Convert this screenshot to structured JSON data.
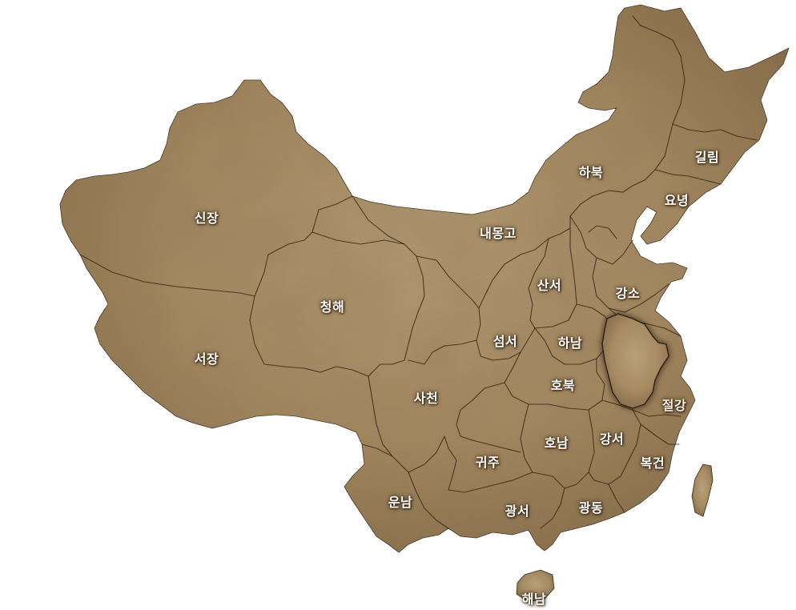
{
  "map": {
    "style": "aged-parchment",
    "colors": {
      "land_base": "#a0865f",
      "land_light": "#b79d74",
      "land_dark": "#5a4428",
      "border": "#3b2a18",
      "label_text": "#ffffff",
      "label_outline": "#3c2814",
      "background": "#ffffff"
    },
    "highlighted_province": "anhui",
    "provinces": [
      {
        "id": "xinjiang",
        "label": "신장"
      },
      {
        "id": "xizang",
        "label": "서장"
      },
      {
        "id": "qinghai",
        "label": "청해"
      },
      {
        "id": "neimenggu",
        "label": "내몽고"
      },
      {
        "id": "hebei",
        "label": "하북"
      },
      {
        "id": "jilin",
        "label": "길림"
      },
      {
        "id": "liaoning",
        "label": "요녕"
      },
      {
        "id": "shanxi",
        "label": "산서"
      },
      {
        "id": "jiangsu",
        "label": "강소"
      },
      {
        "id": "shaanxi",
        "label": "섬서"
      },
      {
        "id": "henan",
        "label": "하남"
      },
      {
        "id": "hubei",
        "label": "호북"
      },
      {
        "id": "sichuan",
        "label": "사천"
      },
      {
        "id": "zhejiang",
        "label": "절강"
      },
      {
        "id": "hunan",
        "label": "호남"
      },
      {
        "id": "jiangxi",
        "label": "강서"
      },
      {
        "id": "guizhou",
        "label": "귀주"
      },
      {
        "id": "fujian",
        "label": "복건"
      },
      {
        "id": "yunnan",
        "label": "운남"
      },
      {
        "id": "guangxi",
        "label": "광서"
      },
      {
        "id": "guangdong",
        "label": "광동"
      },
      {
        "id": "hainan",
        "label": "해남"
      }
    ]
  }
}
